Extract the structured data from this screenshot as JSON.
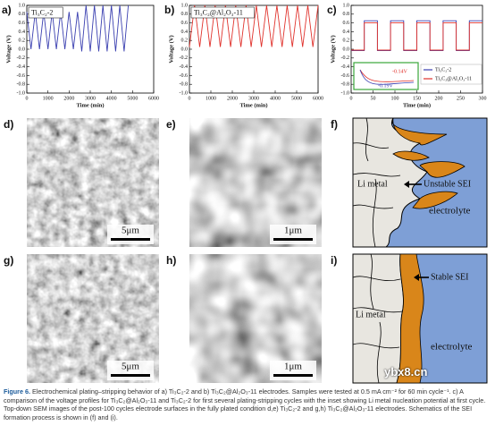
{
  "panels": [
    "a)",
    "b)",
    "c)",
    "d)",
    "e)",
    "f)",
    "g)",
    "h)",
    "i)"
  ],
  "charts": [
    {
      "type": "line",
      "box_label": "Ti₃C₂-2",
      "xlabel": "Time (min)",
      "ylabel": "Voltage (V)",
      "xlim": [
        0,
        6000
      ],
      "ylim": [
        -1,
        1
      ],
      "xticks": [
        0,
        1000,
        2000,
        3000,
        4000,
        5000,
        6000
      ],
      "yticks": [
        {
          "value": 1,
          "label": "1.0"
        },
        0.8,
        0.6,
        0.4,
        0.2,
        {
          "value": 0,
          "label": "0.0"
        },
        -0.2,
        -0.4,
        -0.6,
        -0.8,
        {
          "value": -1,
          "label": "-1.0"
        }
      ],
      "series": [
        {
          "color": "#3a3fb0",
          "x": [
            0,
            200,
            400,
            600,
            800,
            1000,
            1200,
            1400,
            1600,
            1800,
            2000,
            2200,
            2400,
            2600,
            2800,
            3000,
            3200,
            3400,
            3600,
            3800,
            4000,
            4200,
            4400,
            4600,
            4800
          ],
          "values": [
            0.85,
            0.0,
            0.85,
            0.0,
            0.85,
            0.0,
            0.85,
            0.0,
            0.85,
            0.0,
            0.85,
            0.0,
            0.85,
            -0.05,
            1.0,
            -0.05,
            1.0,
            -0.05,
            1.0,
            -0.05,
            1.0,
            -0.05,
            1.0,
            -0.05,
            1.0
          ]
        }
      ]
    },
    {
      "type": "line",
      "box_label": "Ti₃C₂@Al₂O₃-11",
      "xlabel": "Time (min)",
      "ylabel": "Voltage (V)",
      "xlim": [
        0,
        6000
      ],
      "ylim": [
        -1,
        1
      ],
      "xticks": [
        0,
        1000,
        2000,
        3000,
        4000,
        5000,
        6000
      ],
      "yticks": [
        {
          "value": 1,
          "label": "1.0"
        },
        0.8,
        0.6,
        0.4,
        0.2,
        {
          "value": 0,
          "label": "0.0"
        },
        -0.2,
        -0.4,
        -0.6,
        -0.8,
        {
          "value": -1,
          "label": "-1.0"
        }
      ],
      "series": [
        {
          "color": "#e0302a",
          "x": [
            0,
            240,
            480,
            720,
            960,
            1200,
            1440,
            1680,
            1920,
            2160,
            2400,
            2640,
            2880,
            3120,
            3360,
            3600,
            3840,
            4080,
            4320,
            4560,
            4800,
            5040,
            5280,
            5520,
            5760,
            6000
          ],
          "values": [
            0.05,
            1.0,
            0.05,
            1.0,
            0.05,
            1.0,
            0.05,
            1.0,
            0.05,
            1.0,
            0.05,
            1.0,
            0.05,
            1.0,
            0.05,
            1.0,
            0.05,
            1.0,
            0.05,
            1.0,
            0.05,
            1.0,
            0.05,
            1.0,
            0.05,
            1.0
          ]
        }
      ]
    },
    {
      "type": "line",
      "xlabel": "Time (min)",
      "ylabel": "Voltage (V)",
      "xlim": [
        0,
        300
      ],
      "ylim": [
        -1,
        1
      ],
      "xticks": [
        0,
        50,
        100,
        150,
        200,
        250,
        300
      ],
      "yticks": [
        {
          "value": 1,
          "label": "1.0"
        },
        0.8,
        0.6,
        0.4,
        0.2,
        {
          "value": 0,
          "label": "0.0"
        },
        -0.2,
        -0.4,
        -0.6,
        -0.8,
        {
          "value": -1,
          "label": "-1.0"
        }
      ],
      "legend": "lower right",
      "annotations": [
        "-0.14V",
        "-0.19V"
      ],
      "series": [
        {
          "name": "Ti₃C₂-2",
          "color": "#3a3fb0",
          "x": [
            0,
            30,
            30,
            60,
            60,
            90,
            90,
            120,
            120,
            150,
            150,
            180,
            180,
            210,
            210,
            240,
            240,
            270,
            270,
            300
          ],
          "values": [
            -0.03,
            -0.03,
            0.65,
            0.65,
            -0.03,
            -0.03,
            0.65,
            0.65,
            -0.03,
            -0.03,
            0.65,
            0.65,
            -0.03,
            -0.03,
            0.65,
            0.65,
            -0.03,
            -0.03,
            0.65,
            0.65
          ]
        },
        {
          "name": "Ti₃C₂@Al₂O₃-11",
          "color": "#e0302a",
          "x": [
            0,
            30,
            30,
            60,
            60,
            90,
            90,
            120,
            120,
            150,
            150,
            180,
            180,
            210,
            210,
            240,
            240,
            270,
            270,
            300
          ],
          "values": [
            -0.02,
            -0.02,
            0.6,
            0.6,
            -0.02,
            -0.02,
            0.6,
            0.6,
            -0.02,
            -0.02,
            0.6,
            0.6,
            -0.02,
            -0.02,
            0.6,
            0.6,
            -0.02,
            -0.02,
            0.6,
            0.6
          ]
        }
      ]
    }
  ],
  "scale_bars": [
    "5μm",
    "1μm",
    "5μm",
    "1μm"
  ],
  "schematic_f": {
    "metal": "Li metal",
    "sei": "Unstable SEI",
    "electrolyte": "electrolyte"
  },
  "schematic_i": {
    "metal": "Li metal",
    "sei": "Stable SEI",
    "electrolyte": "electrolyte"
  },
  "caption": {
    "label": "Figure 6.",
    "text": "Electrochemical plating–stripping behavior of a) Ti₃C₂-2 and b) Ti₃C₂@Al₂O₃-11 electrodes. Samples were tested at 0.5 mA cm⁻² for 60 min cycle⁻¹. c) A comparison of the voltage profiles for Ti₃C₂@Al₂O₃-11 and Ti₃C₂-2 for first several plating-stripping cycles with the inset showing Li metal nucleation potential at first cycle. Top-down SEM images of the post-100 cycles electrode surfaces in the fully plated condition d,e) Ti₃C₂-2 and g,h) Ti₃C₂@Al₂O₃-11 electrodes. Schematics of the SEI formation process is shown in (f) and (i)."
  },
  "watermark": "ybx8.cn"
}
